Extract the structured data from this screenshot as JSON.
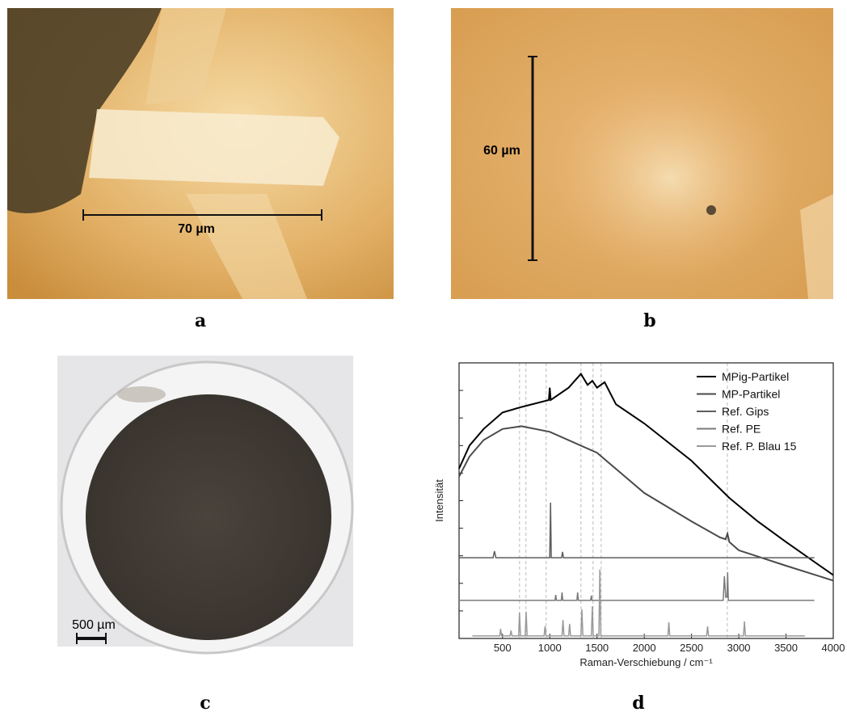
{
  "panels": {
    "a": {
      "label": "a",
      "scale_text": "70 µm"
    },
    "b": {
      "label": "b",
      "scale_text": "60 µm"
    },
    "c": {
      "label": "c",
      "scale_text": "500 µm"
    },
    "d": {
      "label": "d"
    }
  },
  "chart_data": {
    "type": "line",
    "xlabel": "Raman-Verschiebung / cm⁻¹",
    "ylabel": "Intensität",
    "xlim": [
      40,
      4000
    ],
    "ylim": [
      0,
      100
    ],
    "xticks": [
      500,
      1000,
      1500,
      2000,
      2500,
      3000,
      3500,
      4000
    ],
    "yticks": [
      0,
      10,
      20,
      30,
      40,
      50,
      60,
      70,
      80,
      90,
      100
    ],
    "reference_lines": [
      680,
      748,
      962,
      1330,
      1458,
      1544,
      2879
    ],
    "legend": "upper right",
    "series": [
      {
        "name": "MPig-Partikel",
        "color": "#000000",
        "x": [
          40,
          150,
          300,
          500,
          700,
          990,
          1000,
          1010,
          1200,
          1330,
          1400,
          1450,
          1500,
          1580,
          1700,
          2000,
          2500,
          2900,
          3200,
          3500,
          4000
        ],
        "values": [
          61.6,
          70,
          76,
          82,
          84,
          86.5,
          91,
          86.5,
          91,
          96,
          92,
          93.5,
          91,
          93,
          85,
          78,
          64.5,
          51,
          42.5,
          35,
          23
        ]
      },
      {
        "name": "MP-Partikel",
        "color": "#4a4a4a",
        "x": [
          40,
          150,
          300,
          500,
          700,
          1000,
          1500,
          2000,
          2500,
          2800,
          2860,
          2880,
          2900,
          3000,
          3500,
          4000
        ],
        "values": [
          58.7,
          66,
          72,
          76,
          77,
          75,
          67.4,
          52.8,
          42.5,
          36.7,
          36,
          38,
          35,
          32,
          26.4,
          21
        ]
      },
      {
        "name": "Ref. Gips",
        "color": "#5e5e5e",
        "x": [
          40,
          400,
          415,
          430,
          1000,
          1008,
          1016,
          1125,
          1135,
          1145,
          3800
        ],
        "values": [
          29.3,
          29.3,
          31.7,
          29.3,
          29.3,
          49.3,
          29.3,
          29.3,
          31.4,
          29.3,
          29.3
        ]
      },
      {
        "name": "Ref. PE",
        "color": "#7a7a7a",
        "x": [
          40,
          1055,
          1063,
          1071,
          1122,
          1130,
          1138,
          1287,
          1295,
          1303,
          1432,
          1440,
          1448,
          2835,
          2848,
          2862,
          2875,
          2882,
          2890,
          3800
        ],
        "values": [
          13.8,
          13.8,
          15.8,
          13.8,
          13.8,
          16.7,
          13.8,
          13.8,
          16.7,
          13.8,
          13.8,
          15.6,
          13.8,
          13.8,
          22.6,
          15,
          15,
          24,
          13.8,
          13.8
        ]
      },
      {
        "name": "Ref. P. Blau 15",
        "color": "#9a9a9a",
        "x": [
          180,
          470,
          480,
          490,
          580,
          590,
          600,
          670,
          680,
          690,
          740,
          750,
          760,
          940,
          950,
          960,
          1130,
          1140,
          1150,
          1200,
          1210,
          1220,
          1330,
          1340,
          1350,
          1440,
          1450,
          1460,
          1520,
          1530,
          1540,
          2250,
          2260,
          2270,
          2660,
          2670,
          2680,
          3050,
          3060,
          3070,
          3700
        ],
        "values": [
          0.9,
          0.9,
          3.5,
          0.9,
          0.9,
          2.9,
          0.9,
          0.9,
          9.4,
          0.9,
          0.9,
          9.7,
          0.9,
          0.9,
          4.4,
          0.9,
          0.9,
          6.7,
          0.9,
          0.9,
          5.3,
          0.9,
          0.9,
          10.6,
          0.9,
          0.9,
          11.7,
          0.9,
          0.9,
          25,
          0.9,
          0.9,
          5.9,
          0.9,
          0.9,
          4.4,
          0.9,
          0.9,
          6.2,
          0.9,
          0.9
        ]
      }
    ]
  }
}
